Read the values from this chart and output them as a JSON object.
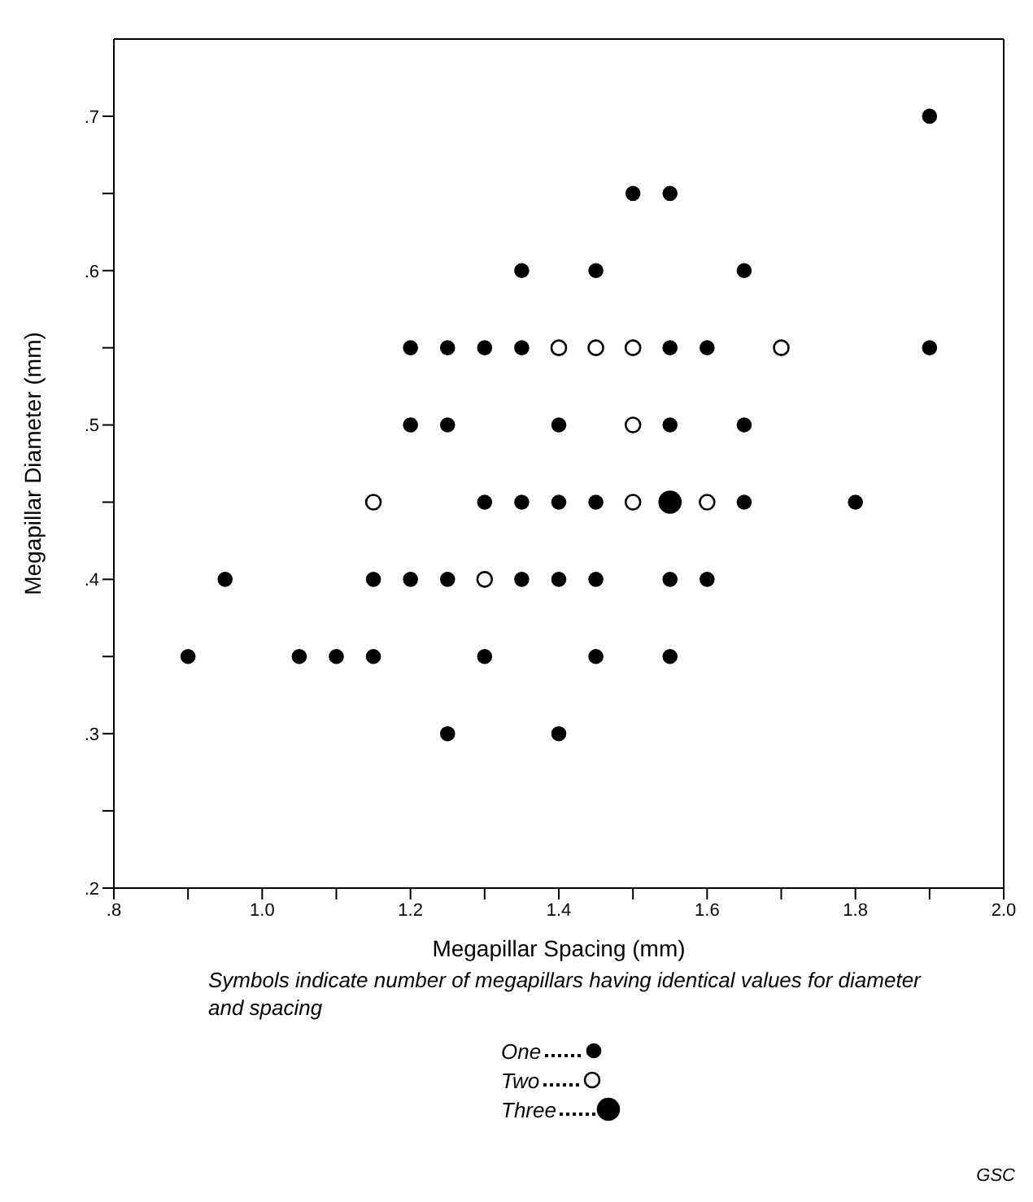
{
  "chart_data": {
    "type": "scatter",
    "xlabel": "Megapillar Spacing (mm)",
    "ylabel": "Megapillar Diameter (mm)",
    "legend_title": "Symbols indicate number of megapillars having identical values for diameter and spacing",
    "legend": "bottom",
    "marker": "circle",
    "xlim": [
      0.8,
      2.0
    ],
    "xticks": [
      {
        "value": 0.8,
        "label": ".8"
      },
      {
        "value": 0.9,
        "label": null
      },
      {
        "value": 1.0,
        "label": "1.0"
      },
      {
        "value": 1.1,
        "label": null
      },
      {
        "value": 1.2,
        "label": "1.2"
      },
      {
        "value": 1.3,
        "label": null
      },
      {
        "value": 1.4,
        "label": "1.4"
      },
      {
        "value": 1.5,
        "label": null
      },
      {
        "value": 1.6,
        "label": "1.6"
      },
      {
        "value": 1.7,
        "label": null
      },
      {
        "value": 1.8,
        "label": "1.8"
      },
      {
        "value": 1.9,
        "label": null
      },
      {
        "value": 2.0,
        "label": "2.0"
      }
    ],
    "ylim": [
      0.2,
      0.75
    ],
    "yticks": [
      {
        "value": 0.2,
        "label": ".2"
      },
      {
        "value": 0.25,
        "label": null
      },
      {
        "value": 0.3,
        "label": ".3"
      },
      {
        "value": 0.35,
        "label": null
      },
      {
        "value": 0.4,
        "label": ".4"
      },
      {
        "value": 0.45,
        "label": null
      },
      {
        "value": 0.5,
        "label": ".5"
      },
      {
        "value": 0.55,
        "label": null
      },
      {
        "value": 0.6,
        "label": ".6"
      },
      {
        "value": 0.65,
        "label": null
      },
      {
        "value": 0.7,
        "label": ".7"
      }
    ],
    "series": [
      {
        "name": "One",
        "color": "#000000",
        "x": [
          1.9,
          1.5,
          1.55,
          1.35,
          1.45,
          1.65,
          1.2,
          1.25,
          1.3,
          1.35,
          1.55,
          1.6,
          1.9,
          1.2,
          1.25,
          1.4,
          1.55,
          1.65,
          1.3,
          1.35,
          1.4,
          1.45,
          1.65,
          1.8,
          0.95,
          1.15,
          1.2,
          1.25,
          1.35,
          1.4,
          1.45,
          1.55,
          1.6,
          0.9,
          1.05,
          1.1,
          1.15,
          1.3,
          1.45,
          1.55,
          1.25,
          1.4
        ],
        "values": [
          0.7,
          0.65,
          0.65,
          0.6,
          0.6,
          0.6,
          0.55,
          0.55,
          0.55,
          0.55,
          0.55,
          0.55,
          0.55,
          0.5,
          0.5,
          0.5,
          0.5,
          0.5,
          0.45,
          0.45,
          0.45,
          0.45,
          0.45,
          0.45,
          0.4,
          0.4,
          0.4,
          0.4,
          0.4,
          0.4,
          0.4,
          0.4,
          0.4,
          0.35,
          0.35,
          0.35,
          0.35,
          0.35,
          0.35,
          0.35,
          0.3,
          0.3
        ]
      },
      {
        "name": "Two",
        "color": "#ffffff",
        "x": [
          1.4,
          1.45,
          1.5,
          1.7,
          1.5,
          1.15,
          1.5,
          1.6,
          1.3
        ],
        "values": [
          0.55,
          0.55,
          0.55,
          0.55,
          0.5,
          0.45,
          0.45,
          0.45,
          0.4
        ]
      },
      {
        "name": "Three",
        "color": "#000000",
        "x": [
          1.55
        ],
        "values": [
          0.45
        ]
      }
    ],
    "annotations": [
      "GSC"
    ]
  }
}
